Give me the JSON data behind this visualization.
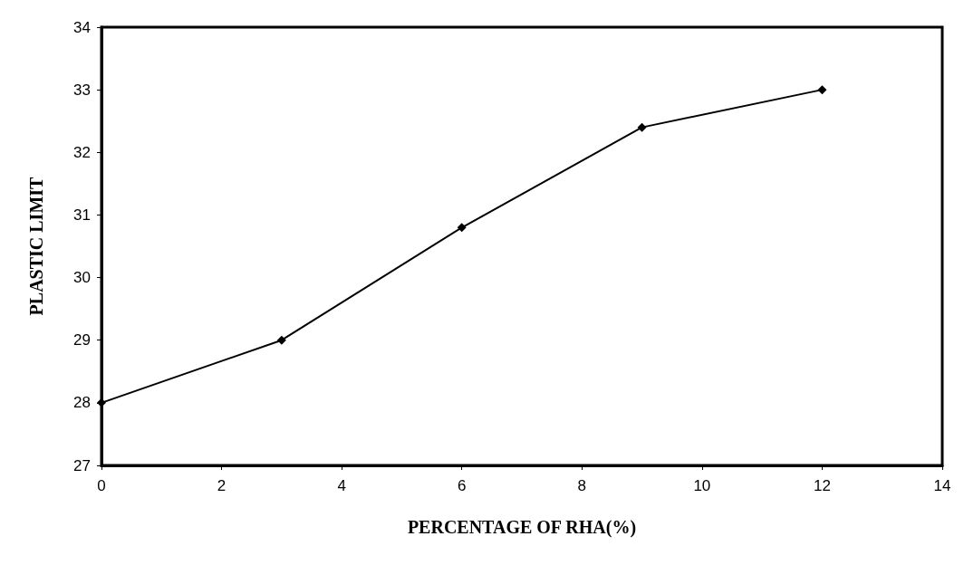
{
  "chart_data": {
    "type": "line",
    "xlabel": "PERCENTAGE OF RHA(%)",
    "ylabel": "PLASTIC LIMIT",
    "x": [
      0,
      3,
      6,
      9,
      12
    ],
    "values": [
      28,
      29,
      30.8,
      32.4,
      33
    ],
    "color": "#000000",
    "marker": "diamond",
    "xlim": [
      0,
      14
    ],
    "xticks": [
      0,
      2,
      4,
      6,
      8,
      10,
      12,
      14
    ],
    "ylim": [
      27,
      34
    ],
    "yticks": [
      27,
      28,
      29,
      30,
      31,
      32,
      33,
      34
    ]
  }
}
